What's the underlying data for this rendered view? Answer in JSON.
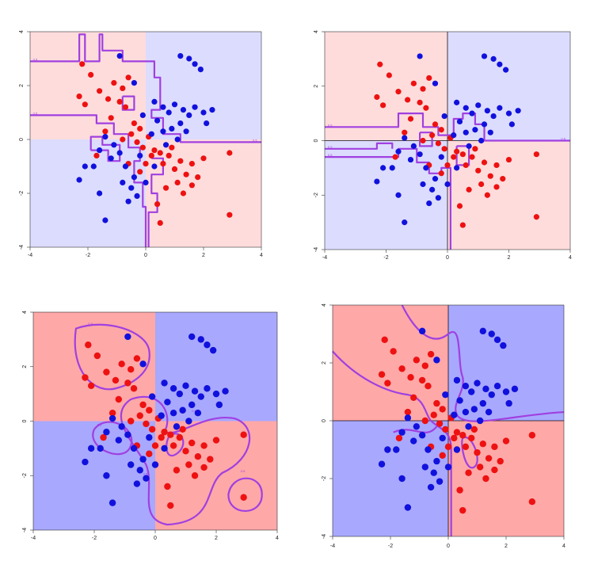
{
  "colors": {
    "red_region": "#ffdcdc",
    "blue_region": "#dcdcff",
    "red_region_strong": "#ffa8a8",
    "blue_region_strong": "#a8a8ff",
    "red_point": "#ee1111",
    "blue_point": "#1111dd",
    "boundary": "#a040e0",
    "axis_line": "#111111"
  },
  "chart_data": [
    {
      "type": "scatter",
      "panel": "top-left",
      "boundary_style": "nearest-neighbour (jagged)",
      "xlim": [
        -4,
        4
      ],
      "ylim": [
        -4,
        4
      ],
      "x_ticks": [
        "-4",
        "-2",
        "0",
        "2",
        "4"
      ],
      "y_ticks": [
        "-4",
        "-2",
        "0",
        "2",
        "4"
      ],
      "quadrant_axes_drawn": false,
      "contour_labels": [
        "0.5",
        "0.5",
        "0.5"
      ],
      "points_ref": "shared_points"
    },
    {
      "type": "scatter",
      "panel": "top-right",
      "boundary_style": "nearest-neighbour (jagged)",
      "xlim": [
        -4,
        4
      ],
      "ylim": [
        -4,
        4
      ],
      "x_ticks": [
        "-4",
        "-2",
        "0",
        "2",
        "4"
      ],
      "y_ticks": [
        "-4",
        "-2",
        "0",
        "2",
        "4"
      ],
      "quadrant_axes_drawn": true,
      "contour_labels": [
        "0.5",
        "0.5",
        "0.5",
        "0.5"
      ],
      "points_ref": "shared_points"
    },
    {
      "type": "scatter",
      "panel": "bottom-left",
      "boundary_style": "smooth kernel (closed loops)",
      "xlim": [
        -4,
        4
      ],
      "ylim": [
        -4,
        4
      ],
      "x_ticks": [
        "-4",
        "-2",
        "0",
        "2",
        "4"
      ],
      "y_ticks": [
        "-4",
        "-2",
        "0",
        "2",
        "4"
      ],
      "quadrant_axes_drawn": false,
      "contour_labels": [
        "0.5",
        "0.5",
        "0.5",
        "0.5",
        "0.5"
      ],
      "points_ref": "shared_points"
    },
    {
      "type": "scatter",
      "panel": "bottom-right",
      "boundary_style": "smooth (curved)",
      "xlim": [
        -4,
        4
      ],
      "ylim": [
        -4,
        4
      ],
      "x_ticks": [
        "-4",
        "-2",
        "0",
        "2",
        "4"
      ],
      "y_ticks": [
        "-4",
        "-2",
        "0",
        "2",
        "4"
      ],
      "quadrant_axes_drawn": true,
      "contour_labels": [],
      "points_ref": "shared_points"
    }
  ],
  "shared_points": {
    "red": [
      [
        -2.2,
        2.8
      ],
      [
        -1.9,
        2.4
      ],
      [
        -2.3,
        1.6
      ],
      [
        -2.1,
        1.3
      ],
      [
        -1.6,
        1.8
      ],
      [
        -1.3,
        1.5
      ],
      [
        -1.1,
        2.1
      ],
      [
        -0.8,
        1.9
      ],
      [
        -0.6,
        2.3
      ],
      [
        -0.9,
        1.4
      ],
      [
        -0.7,
        1.2
      ],
      [
        -1.2,
        0.8
      ],
      [
        -0.4,
        0.6
      ],
      [
        -0.2,
        0.4
      ],
      [
        -0.5,
        0.2
      ],
      [
        -0.3,
        -0.1
      ],
      [
        -0.1,
        -0.3
      ],
      [
        0.1,
        0.1
      ],
      [
        0.3,
        -0.4
      ],
      [
        0.2,
        -0.6
      ],
      [
        0.5,
        -0.5
      ],
      [
        0.6,
        -0.9
      ],
      [
        0.8,
        -0.6
      ],
      [
        1.0,
        -1.1
      ],
      [
        1.2,
        -0.8
      ],
      [
        1.4,
        -1.3
      ],
      [
        1.6,
        -0.9
      ],
      [
        1.8,
        -1.4
      ],
      [
        2.0,
        -0.7
      ],
      [
        1.1,
        -1.6
      ],
      [
        0.7,
        -1.8
      ],
      [
        1.3,
        -2.0
      ],
      [
        0.5,
        -3.1
      ],
      [
        0.4,
        -2.4
      ],
      [
        2.9,
        -0.5
      ],
      [
        2.9,
        -2.8
      ],
      [
        -1.7,
        -0.6
      ],
      [
        -0.6,
        -0.9
      ],
      [
        -0.2,
        -1.2
      ],
      [
        0.0,
        -0.9
      ],
      [
        1.6,
        -1.7
      ],
      [
        0.9,
        -0.3
      ],
      [
        -1.4,
        0.3
      ],
      [
        -0.8,
        0.0
      ]
    ],
    "blue": [
      [
        -0.9,
        3.1
      ],
      [
        1.2,
        3.1
      ],
      [
        1.5,
        3.0
      ],
      [
        1.7,
        2.8
      ],
      [
        1.9,
        2.6
      ],
      [
        -0.4,
        2.1
      ],
      [
        0.3,
        1.4
      ],
      [
        0.6,
        1.2
      ],
      [
        0.8,
        1.0
      ],
      [
        1.0,
        1.3
      ],
      [
        1.3,
        1.1
      ],
      [
        1.5,
        0.9
      ],
      [
        1.7,
        1.2
      ],
      [
        2.0,
        1.0
      ],
      [
        2.3,
        1.1
      ],
      [
        1.2,
        0.6
      ],
      [
        0.9,
        0.4
      ],
      [
        0.4,
        0.7
      ],
      [
        -0.1,
        0.9
      ],
      [
        -1.1,
        -0.2
      ],
      [
        -1.4,
        0.1
      ],
      [
        -1.6,
        -0.4
      ],
      [
        -1.2,
        -0.7
      ],
      [
        -0.9,
        -0.5
      ],
      [
        -0.7,
        -1.0
      ],
      [
        -0.4,
        -1.4
      ],
      [
        -0.5,
        -1.8
      ],
      [
        -0.3,
        -2.1
      ],
      [
        -0.6,
        -2.3
      ],
      [
        -2.1,
        -1.0
      ],
      [
        -2.3,
        -1.5
      ],
      [
        -1.6,
        -2.0
      ],
      [
        -1.4,
        -3.0
      ],
      [
        -1.8,
        -1.0
      ],
      [
        0.2,
        0.2
      ],
      [
        0.6,
        0.3
      ],
      [
        0.3,
        -1.0
      ],
      [
        0.0,
        -1.6
      ],
      [
        -0.2,
        -0.6
      ],
      [
        0.7,
        -0.2
      ],
      [
        1.1,
        0.0
      ],
      [
        -0.8,
        -1.6
      ],
      [
        1.4,
        0.3
      ],
      [
        2.1,
        0.6
      ]
    ]
  }
}
